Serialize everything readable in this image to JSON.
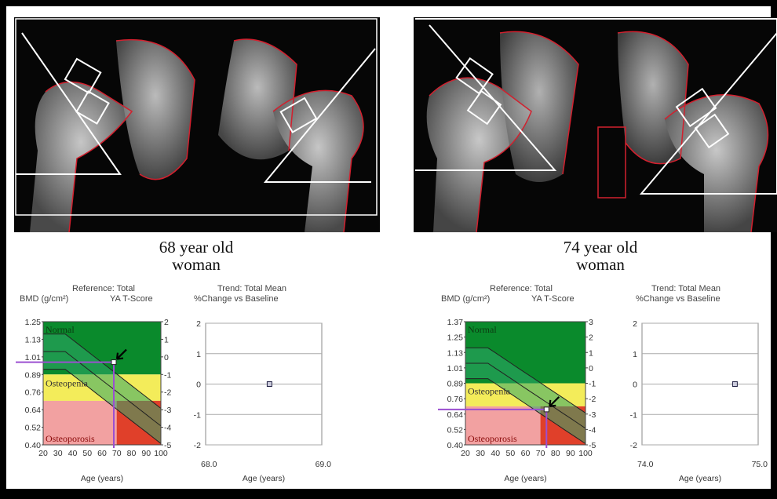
{
  "panels": [
    {
      "caption_line1": "68 year old",
      "caption_line2": "woman",
      "ref_chart": {
        "ref_title": "Reference: Total",
        "y_left_title": "BMD (g/cm²)",
        "y_right_title": "YA T-Score",
        "bmd_ticks": [
          "1.25",
          "1.13",
          "1.01",
          "0.89",
          "0.76",
          "0.64",
          "0.52",
          "0.40"
        ],
        "t_ticks": [
          "2",
          "1",
          "0",
          "-1",
          "-2",
          "-3",
          "-4",
          "-5"
        ],
        "x_ticks": [
          "20",
          "30",
          "40",
          "50",
          "60",
          "70",
          "80",
          "90",
          "100"
        ],
        "x_label": "Age (years)",
        "normal_label": "Normal",
        "osteopenia_label": "Osteopenia",
        "osteoporosis_label": "Osteoporosis",
        "patient_age": 68,
        "patient_t": -0.3
      },
      "trend_chart": {
        "title_line1": "Trend: Total Mean",
        "title_line2": "%Change vs Baseline",
        "y_ticks": [
          "2",
          "1",
          "0",
          "-1",
          "-2"
        ],
        "x_ticks": [
          "68.0",
          "69.0"
        ],
        "x_label": "Age (years)",
        "point_x": 0.55,
        "point_y": 0
      }
    },
    {
      "caption_line1": "74 year old",
      "caption_line2": "woman",
      "ref_chart": {
        "ref_title": "Reference: Total",
        "y_left_title": "BMD (g/cm²)",
        "y_right_title": "YA T-Score",
        "bmd_ticks": [
          "1.37",
          "1.25",
          "1.13",
          "1.01",
          "0.89",
          "0.76",
          "0.64",
          "0.52",
          "0.40"
        ],
        "t_ticks": [
          "3",
          "2",
          "1",
          "0",
          "-1",
          "-2",
          "-3",
          "-4",
          "-5"
        ],
        "x_ticks": [
          "20",
          "30",
          "40",
          "50",
          "60",
          "70",
          "80",
          "90",
          "100"
        ],
        "x_label": "Age (years)",
        "normal_label": "Normal",
        "osteopenia_label": "Osteopenia",
        "osteoporosis_label": "Osteoporosis",
        "patient_age": 74,
        "patient_t": -2.7
      },
      "trend_chart": {
        "title_line1": "Trend: Total Mean",
        "title_line2": "%Change vs Baseline",
        "y_ticks": [
          "2",
          "1",
          "0",
          "-1",
          "-2"
        ],
        "x_ticks": [
          "74.0",
          "75.0"
        ],
        "x_label": "Age (years)",
        "point_x": 0.8,
        "point_y": 0
      }
    }
  ],
  "colors": {
    "normal": "#0a8a2c",
    "normal_curve_band": "#2fa86a",
    "osteopenia": "#f3ec5a",
    "osteopenia_curve_band": "#c9b86a",
    "osteoporosis": "#f2a1a1",
    "osteoporosis_dark": "#e0402a",
    "marker_line": "#9b4fd1",
    "scan_outline": "#d2202e"
  }
}
